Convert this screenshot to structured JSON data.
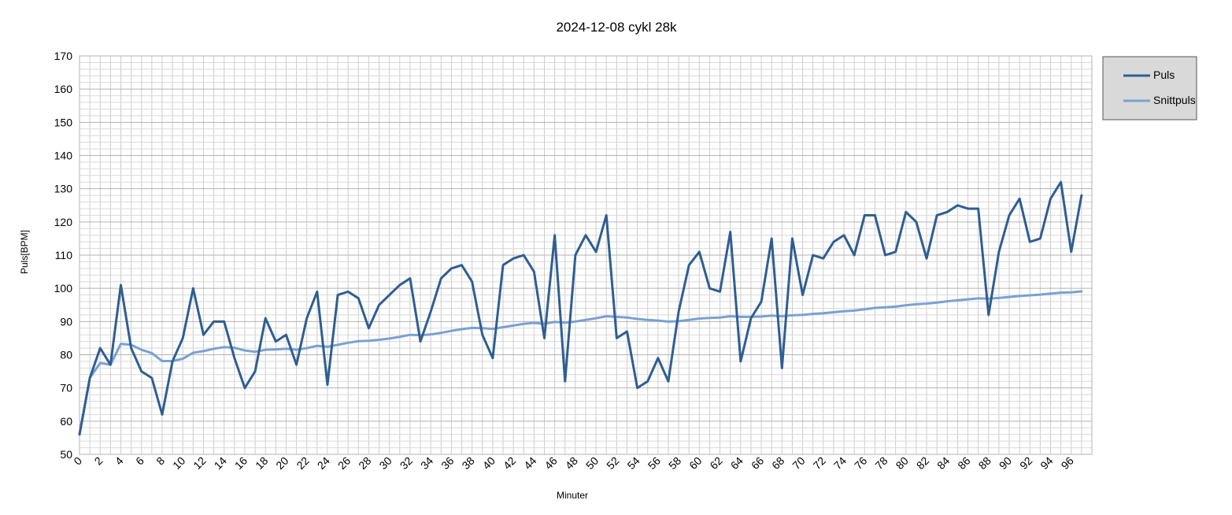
{
  "chart_data": {
    "type": "line",
    "title": "2024-12-08 cykl 28k",
    "xlabel": "Minuter",
    "ylabel": "Puls[BPM]",
    "xlim": [
      0,
      98
    ],
    "ylim": [
      50,
      170
    ],
    "y_major_step": 10,
    "y_minor_step": 2,
    "x_tick_step": 2,
    "grid": true,
    "legend_position": "right",
    "series": [
      {
        "name": "Puls",
        "color": "#2f5e91",
        "values": [
          56,
          73,
          82,
          77,
          101,
          82,
          75,
          73,
          62,
          78,
          85,
          100,
          86,
          90,
          90,
          79,
          70,
          75,
          91,
          84,
          86,
          77,
          91,
          99,
          71,
          98,
          99,
          97,
          88,
          95,
          98,
          101,
          103,
          84,
          93,
          103,
          106,
          107,
          102,
          86,
          79,
          107,
          109,
          110,
          105,
          85,
          116,
          72,
          110,
          116,
          111,
          122,
          85,
          87,
          70,
          72,
          79,
          72,
          93,
          107,
          111,
          100,
          99,
          117,
          78,
          91,
          96,
          115,
          76,
          115,
          98,
          110,
          109,
          114,
          116,
          110,
          122,
          122,
          110,
          111,
          123,
          120,
          109,
          122,
          123,
          125,
          124,
          124,
          92,
          111,
          122,
          127,
          114,
          115,
          127,
          132,
          111,
          128
        ]
      },
      {
        "name": "Snittpuls",
        "color": "#79a1d3",
        "values": [
          56,
          73,
          77.5,
          77,
          83.3,
          83,
          81.5,
          80.5,
          78.1,
          78.1,
          78.8,
          80.6,
          81.1,
          81.8,
          82.3,
          82.1,
          81.3,
          80.9,
          81.5,
          81.6,
          81.8,
          81.5,
          82,
          82.7,
          82.4,
          83,
          83.6,
          84.1,
          84.2,
          84.5,
          84.9,
          85.4,
          86,
          85.9,
          86.1,
          86.6,
          87.2,
          87.7,
          88.1,
          88,
          87.8,
          88.3,
          88.8,
          89.3,
          89.6,
          89.3,
          89.9,
          89.7,
          90,
          90.5,
          91,
          91.6,
          91.4,
          91.2,
          90.8,
          90.5,
          90.3,
          90,
          90.1,
          90.5,
          90.9,
          91.1,
          91.2,
          91.6,
          91.4,
          91.4,
          91.5,
          91.8,
          91.6,
          91.9,
          92,
          92.3,
          92.5,
          92.8,
          93.1,
          93.3,
          93.7,
          94.1,
          94.3,
          94.5,
          94.9,
          95.2,
          95.4,
          95.7,
          96.1,
          96.4,
          96.7,
          97,
          96.9,
          97.1,
          97.4,
          97.7,
          97.9,
          98.1,
          98.4,
          98.7,
          98.8,
          99.1
        ]
      }
    ]
  }
}
